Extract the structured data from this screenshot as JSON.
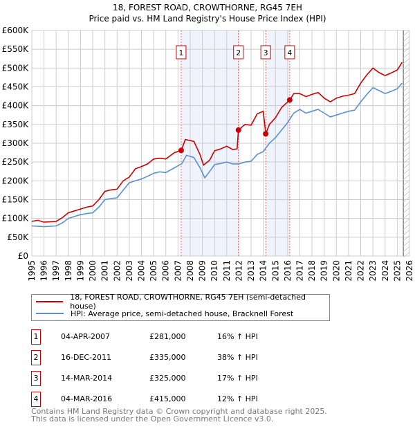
{
  "chart_data": {
    "type": "line",
    "title": "18, FOREST ROAD, CROWTHORNE, RG45 7EH",
    "subtitle": "Price paid vs. HM Land Registry's House Price Index (HPI)",
    "xlim": [
      1995,
      2026
    ],
    "ylim": [
      0,
      600000
    ],
    "y_ticks": [
      0,
      50000,
      100000,
      150000,
      200000,
      250000,
      300000,
      350000,
      400000,
      450000,
      500000,
      550000,
      600000
    ],
    "y_tick_labels": [
      "£0",
      "£50K",
      "£100K",
      "£150K",
      "£200K",
      "£250K",
      "£300K",
      "£350K",
      "£400K",
      "£450K",
      "£500K",
      "£550K",
      "£600K"
    ],
    "x_tick_labels": [
      "1995",
      "1996",
      "1997",
      "1998",
      "1999",
      "2000",
      "2001",
      "2002",
      "2003",
      "2004",
      "2005",
      "2006",
      "2007",
      "2008",
      "2009",
      "2010",
      "2011",
      "2012",
      "2013",
      "2014",
      "2015",
      "2016",
      "2017",
      "2018",
      "2019",
      "2020",
      "2021",
      "2022",
      "2023",
      "2024",
      "2025",
      "2026"
    ],
    "grid": true,
    "colors": {
      "property": "#cc0000",
      "hpi": "#5b8fd0",
      "shade": "#eef3fc"
    },
    "shaded_ranges": [
      [
        2007.26,
        2011.96
      ],
      [
        2014.2,
        2016.17
      ]
    ],
    "forecast_from": 2025.5,
    "series": [
      {
        "name": "18, FOREST ROAD, CROWTHORNE, RG45 7EH (semi-detached house)",
        "points": [
          [
            1995,
            92
          ],
          [
            1995.5,
            95
          ],
          [
            1996,
            90
          ],
          [
            1997,
            92
          ],
          [
            1997.5,
            102
          ],
          [
            1998,
            115
          ],
          [
            1998.5,
            120
          ],
          [
            1999,
            125
          ],
          [
            1999.5,
            130
          ],
          [
            2000,
            133
          ],
          [
            2000.5,
            150
          ],
          [
            2001,
            172
          ],
          [
            2001.5,
            176
          ],
          [
            2002,
            178
          ],
          [
            2002.5,
            200
          ],
          [
            2003,
            210
          ],
          [
            2003.5,
            232
          ],
          [
            2004,
            238
          ],
          [
            2004.5,
            245
          ],
          [
            2005,
            258
          ],
          [
            2005.5,
            260
          ],
          [
            2006,
            258
          ],
          [
            2006.7,
            275
          ],
          [
            2007.27,
            281
          ],
          [
            2007.6,
            310
          ],
          [
            2008.3,
            305
          ],
          [
            2008.8,
            270
          ],
          [
            2009.1,
            242
          ],
          [
            2009.6,
            255
          ],
          [
            2010,
            280
          ],
          [
            2010.5,
            285
          ],
          [
            2011,
            292
          ],
          [
            2011.5,
            283
          ],
          [
            2011.85,
            285
          ],
          [
            2011.96,
            335
          ],
          [
            2012.5,
            350
          ],
          [
            2013,
            348
          ],
          [
            2013.5,
            378
          ],
          [
            2014,
            385
          ],
          [
            2014.2,
            325
          ],
          [
            2014.5,
            350
          ],
          [
            2015,
            368
          ],
          [
            2015.5,
            395
          ],
          [
            2016.17,
            415
          ],
          [
            2016.5,
            432
          ],
          [
            2017,
            432
          ],
          [
            2017.5,
            424
          ],
          [
            2018,
            430
          ],
          [
            2018.5,
            435
          ],
          [
            2019,
            420
          ],
          [
            2019.5,
            410
          ],
          [
            2020,
            420
          ],
          [
            2020.5,
            425
          ],
          [
            2021,
            428
          ],
          [
            2021.5,
            432
          ],
          [
            2022,
            460
          ],
          [
            2022.5,
            482
          ],
          [
            2023,
            500
          ],
          [
            2023.5,
            488
          ],
          [
            2024,
            480
          ],
          [
            2024.5,
            487
          ],
          [
            2025,
            495
          ],
          [
            2025.4,
            515
          ]
        ]
      },
      {
        "name": "HPI: Average price, semi-detached house, Bracknell Forest",
        "points": [
          [
            1995,
            80
          ],
          [
            1996,
            78
          ],
          [
            1997,
            80
          ],
          [
            1997.5,
            88
          ],
          [
            1998,
            100
          ],
          [
            1998.5,
            105
          ],
          [
            1999,
            110
          ],
          [
            1999.5,
            113
          ],
          [
            2000,
            115
          ],
          [
            2000.5,
            130
          ],
          [
            2001,
            150
          ],
          [
            2001.5,
            153
          ],
          [
            2002,
            155
          ],
          [
            2002.5,
            175
          ],
          [
            2003,
            195
          ],
          [
            2003.5,
            200
          ],
          [
            2004,
            205
          ],
          [
            2004.5,
            212
          ],
          [
            2005,
            220
          ],
          [
            2005.5,
            224
          ],
          [
            2006,
            222
          ],
          [
            2007,
            240
          ],
          [
            2007.3,
            245
          ],
          [
            2007.7,
            268
          ],
          [
            2008.3,
            262
          ],
          [
            2008.8,
            235
          ],
          [
            2009.2,
            208
          ],
          [
            2009.6,
            225
          ],
          [
            2010,
            243
          ],
          [
            2010.5,
            246
          ],
          [
            2011,
            250
          ],
          [
            2011.5,
            245
          ],
          [
            2012,
            245
          ],
          [
            2012.5,
            250
          ],
          [
            2013,
            252
          ],
          [
            2013.5,
            270
          ],
          [
            2014,
            278
          ],
          [
            2014.5,
            300
          ],
          [
            2015,
            315
          ],
          [
            2015.5,
            335
          ],
          [
            2016,
            355
          ],
          [
            2016.5,
            380
          ],
          [
            2017,
            390
          ],
          [
            2017.5,
            380
          ],
          [
            2018,
            385
          ],
          [
            2018.5,
            390
          ],
          [
            2019,
            380
          ],
          [
            2019.5,
            370
          ],
          [
            2020,
            375
          ],
          [
            2020.5,
            380
          ],
          [
            2021,
            385
          ],
          [
            2021.5,
            388
          ],
          [
            2022,
            410
          ],
          [
            2022.5,
            430
          ],
          [
            2023,
            448
          ],
          [
            2023.5,
            440
          ],
          [
            2024,
            432
          ],
          [
            2024.5,
            438
          ],
          [
            2025,
            445
          ],
          [
            2025.4,
            460
          ]
        ]
      }
    ],
    "sales": [
      {
        "label": "1",
        "x": 2007.26,
        "y": 281000
      },
      {
        "label": "2",
        "x": 2011.96,
        "y": 335000
      },
      {
        "label": "3",
        "x": 2014.2,
        "y": 325000
      },
      {
        "label": "4",
        "x": 2016.17,
        "y": 415000
      }
    ]
  },
  "legend": {
    "property": "18, FOREST ROAD, CROWTHORNE, RG45 7EH (semi-detached house)",
    "hpi": "HPI: Average price, semi-detached house, Bracknell Forest"
  },
  "table": [
    {
      "num": "1",
      "date": "04-APR-2007",
      "price": "£281,000",
      "hpi": "16% ↑ HPI"
    },
    {
      "num": "2",
      "date": "16-DEC-2011",
      "price": "£335,000",
      "hpi": "38% ↑ HPI"
    },
    {
      "num": "3",
      "date": "14-MAR-2014",
      "price": "£325,000",
      "hpi": "17% ↑ HPI"
    },
    {
      "num": "4",
      "date": "04-MAR-2016",
      "price": "£415,000",
      "hpi": "12% ↑ HPI"
    }
  ],
  "footer": {
    "line1": "Contains HM Land Registry data © Crown copyright and database right 2025.",
    "line2": "This data is licensed under the Open Government Licence v3.0."
  }
}
